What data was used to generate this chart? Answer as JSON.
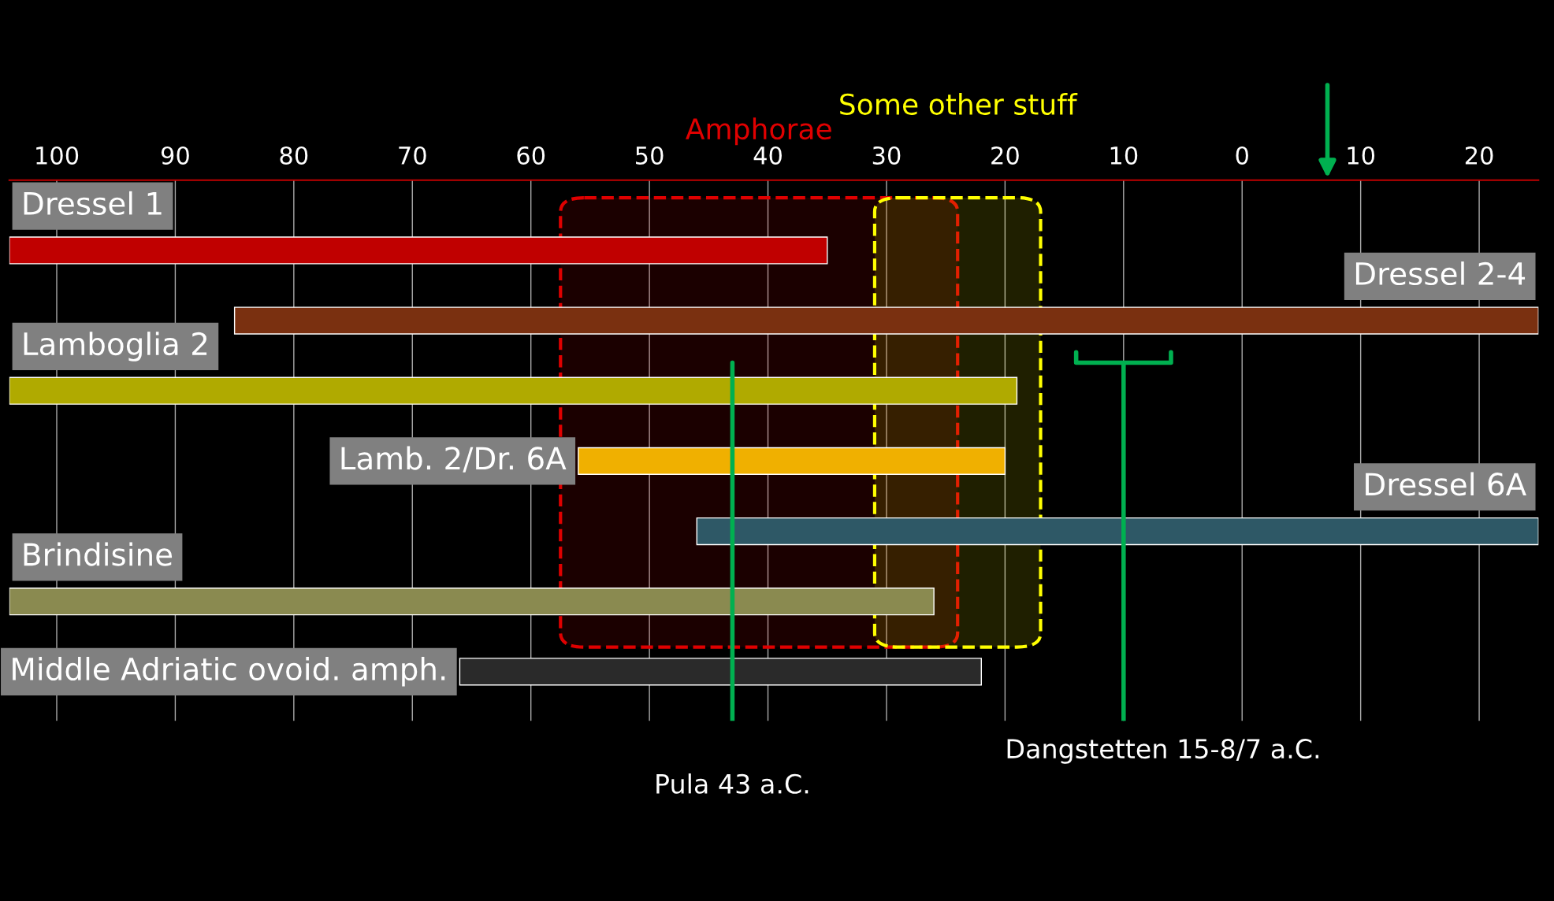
{
  "chart_data": {
    "type": "bar",
    "orientation": "horizontal",
    "categories": [
      "Dressel 1",
      "Dressel 2-4",
      "Lamboglia 2",
      "Lamb. 2/Dr. 6A",
      "Dressel 6A",
      "Brindisine",
      "Middle Adriatic ovoid. amph."
    ],
    "base": [
      -104,
      -85,
      -104,
      -56,
      -46,
      -104,
      -66
    ],
    "values": [
      69,
      110,
      85,
      36,
      71,
      78,
      44
    ],
    "colors": [
      "#c00000",
      "#7a3010",
      "#b0aa00",
      "#f0b000",
      "#2e5866",
      "#8a8a50",
      "#2a2a2a"
    ],
    "xlim": [
      -104,
      25
    ],
    "xticks": [
      {
        "value": -100,
        "label": "100"
      },
      {
        "value": -90,
        "label": "90"
      },
      {
        "value": -80,
        "label": "80"
      },
      {
        "value": -70,
        "label": "70"
      },
      {
        "value": -60,
        "label": "60"
      },
      {
        "value": -50,
        "label": "50"
      },
      {
        "value": -40,
        "label": "40"
      },
      {
        "value": -30,
        "label": "30"
      },
      {
        "value": -20,
        "label": "20"
      },
      {
        "value": -10,
        "label": "10"
      },
      0,
      10,
      20
    ],
    "grid": "x",
    "ref_lines": [
      {
        "axis": "x",
        "value": -43,
        "label": "Pula 43 a.C.",
        "color": "#00b050"
      },
      {
        "axis": "x",
        "value": -10,
        "label": "Dangstetten 15-8/7 a.C.",
        "color": "#00b050"
      }
    ],
    "bands": [
      {
        "axis": "x",
        "from": -57.5,
        "to": -24,
        "label": "Amphorae",
        "color": "#e00000"
      },
      {
        "axis": "x",
        "from": -31,
        "to": -17,
        "label": "Some other stuff",
        "color": "#ffff00"
      }
    ]
  }
}
